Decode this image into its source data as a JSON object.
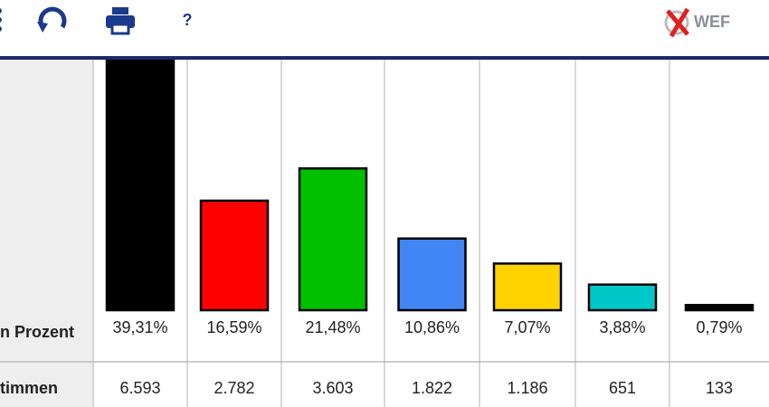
{
  "header": {
    "logo": "WEF",
    "help": "?"
  },
  "chart_data": {
    "type": "bar",
    "row_labels": [
      "n Prozent",
      "timmen"
    ],
    "colors": [
      "#000000",
      "#ff0000",
      "#00c000",
      "#4285f4",
      "#ffd200",
      "#00c8c8",
      "#000000"
    ],
    "values": [
      39.31,
      16.59,
      21.48,
      10.86,
      7.07,
      3.88,
      0.79
    ],
    "value_labels": [
      "39,31%",
      "16,59%",
      "21,48%",
      "10,86%",
      "7,07%",
      "3,88%",
      "0,79%"
    ],
    "votes": [
      6593,
      2782,
      3603,
      1822,
      1186,
      651,
      133
    ],
    "vote_labels": [
      "6.593",
      "2.782",
      "3.603",
      "1.822",
      "1.186",
      "651",
      "133"
    ]
  }
}
